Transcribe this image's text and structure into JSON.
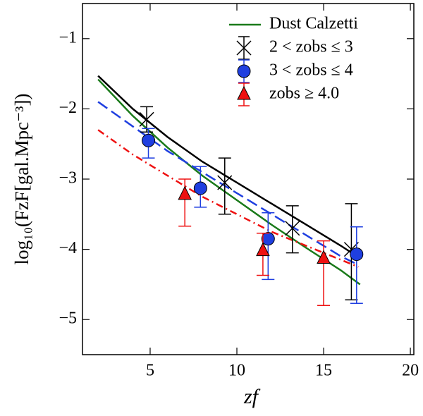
{
  "chart_data": {
    "type": "line",
    "x_label": "zf",
    "y_label": "log₁₀(FzF[gal.Mpc⁻³])",
    "xlim": [
      1.1,
      20.2
    ],
    "ylim": [
      -5.5,
      -0.5
    ],
    "xticks": [
      5,
      10,
      15,
      20
    ],
    "yticks": [
      {
        "value": -1,
        "label": "−1"
      },
      {
        "value": -2,
        "label": "−2"
      },
      {
        "value": -3,
        "label": "−3"
      },
      {
        "value": -4,
        "label": "−4"
      },
      {
        "value": -5,
        "label": "−5"
      }
    ],
    "legend": "upper right",
    "series": [
      {
        "color": "#000000",
        "dash": "solid",
        "x": [
          2,
          4,
          6,
          8,
          10,
          12,
          14,
          16,
          16.8
        ],
        "values": [
          -1.53,
          -2.0,
          -2.4,
          -2.75,
          -3.05,
          -3.35,
          -3.65,
          -3.95,
          -4.08
        ]
      },
      {
        "name": "Dust Calzetti",
        "color": "#1a7a1a",
        "dash": "solid",
        "x": [
          2,
          4,
          6,
          8,
          10,
          12,
          14,
          16,
          17.1
        ],
        "values": [
          -1.58,
          -2.1,
          -2.55,
          -2.95,
          -3.3,
          -3.65,
          -3.98,
          -4.3,
          -4.5
        ]
      },
      {
        "color": "#1f3fe0",
        "dash": "dashed",
        "x": [
          2,
          4,
          6,
          8,
          10,
          12,
          14,
          16,
          17
        ],
        "values": [
          -1.9,
          -2.25,
          -2.6,
          -2.9,
          -3.2,
          -3.5,
          -3.8,
          -4.1,
          -4.22
        ]
      },
      {
        "color": "#ee1111",
        "dash": "dashdot",
        "x": [
          2,
          4,
          6,
          8,
          10,
          12,
          14,
          16,
          17
        ],
        "values": [
          -2.3,
          -2.65,
          -2.95,
          -3.25,
          -3.5,
          -3.75,
          -3.95,
          -4.15,
          -4.25
        ]
      },
      {
        "name": "2 < zobs ≤ 3",
        "color": "#000000",
        "marker": "x",
        "x": [
          4.8,
          9.3,
          13.2,
          16.6
        ],
        "values": [
          -2.15,
          -3.05,
          -3.7,
          -4.0
        ],
        "yerr_minus": [
          0.18,
          0.45,
          0.35,
          0.72
        ],
        "yerr_plus": [
          0.18,
          0.35,
          0.32,
          0.65
        ]
      },
      {
        "name": "3 < zobs ≤ 4",
        "color": "#1f3fe0",
        "marker": "circle",
        "x": [
          4.9,
          7.9,
          11.8,
          16.9
        ],
        "values": [
          -2.45,
          -3.13,
          -3.85,
          -4.07
        ],
        "yerr_minus": [
          0.25,
          0.27,
          0.58,
          0.7
        ],
        "yerr_plus": [
          0.17,
          0.31,
          0.37,
          0.39
        ]
      },
      {
        "name": "zobs ≥ 4.0",
        "color": "#ee1111",
        "marker": "triangle",
        "x": [
          7.0,
          11.5,
          15.0
        ],
        "values": [
          -3.22,
          -4.02,
          -4.13
        ],
        "yerr_minus": [
          0.45,
          0.35,
          0.67
        ],
        "yerr_plus": [
          0.22,
          0.25,
          0.25
        ]
      }
    ]
  }
}
